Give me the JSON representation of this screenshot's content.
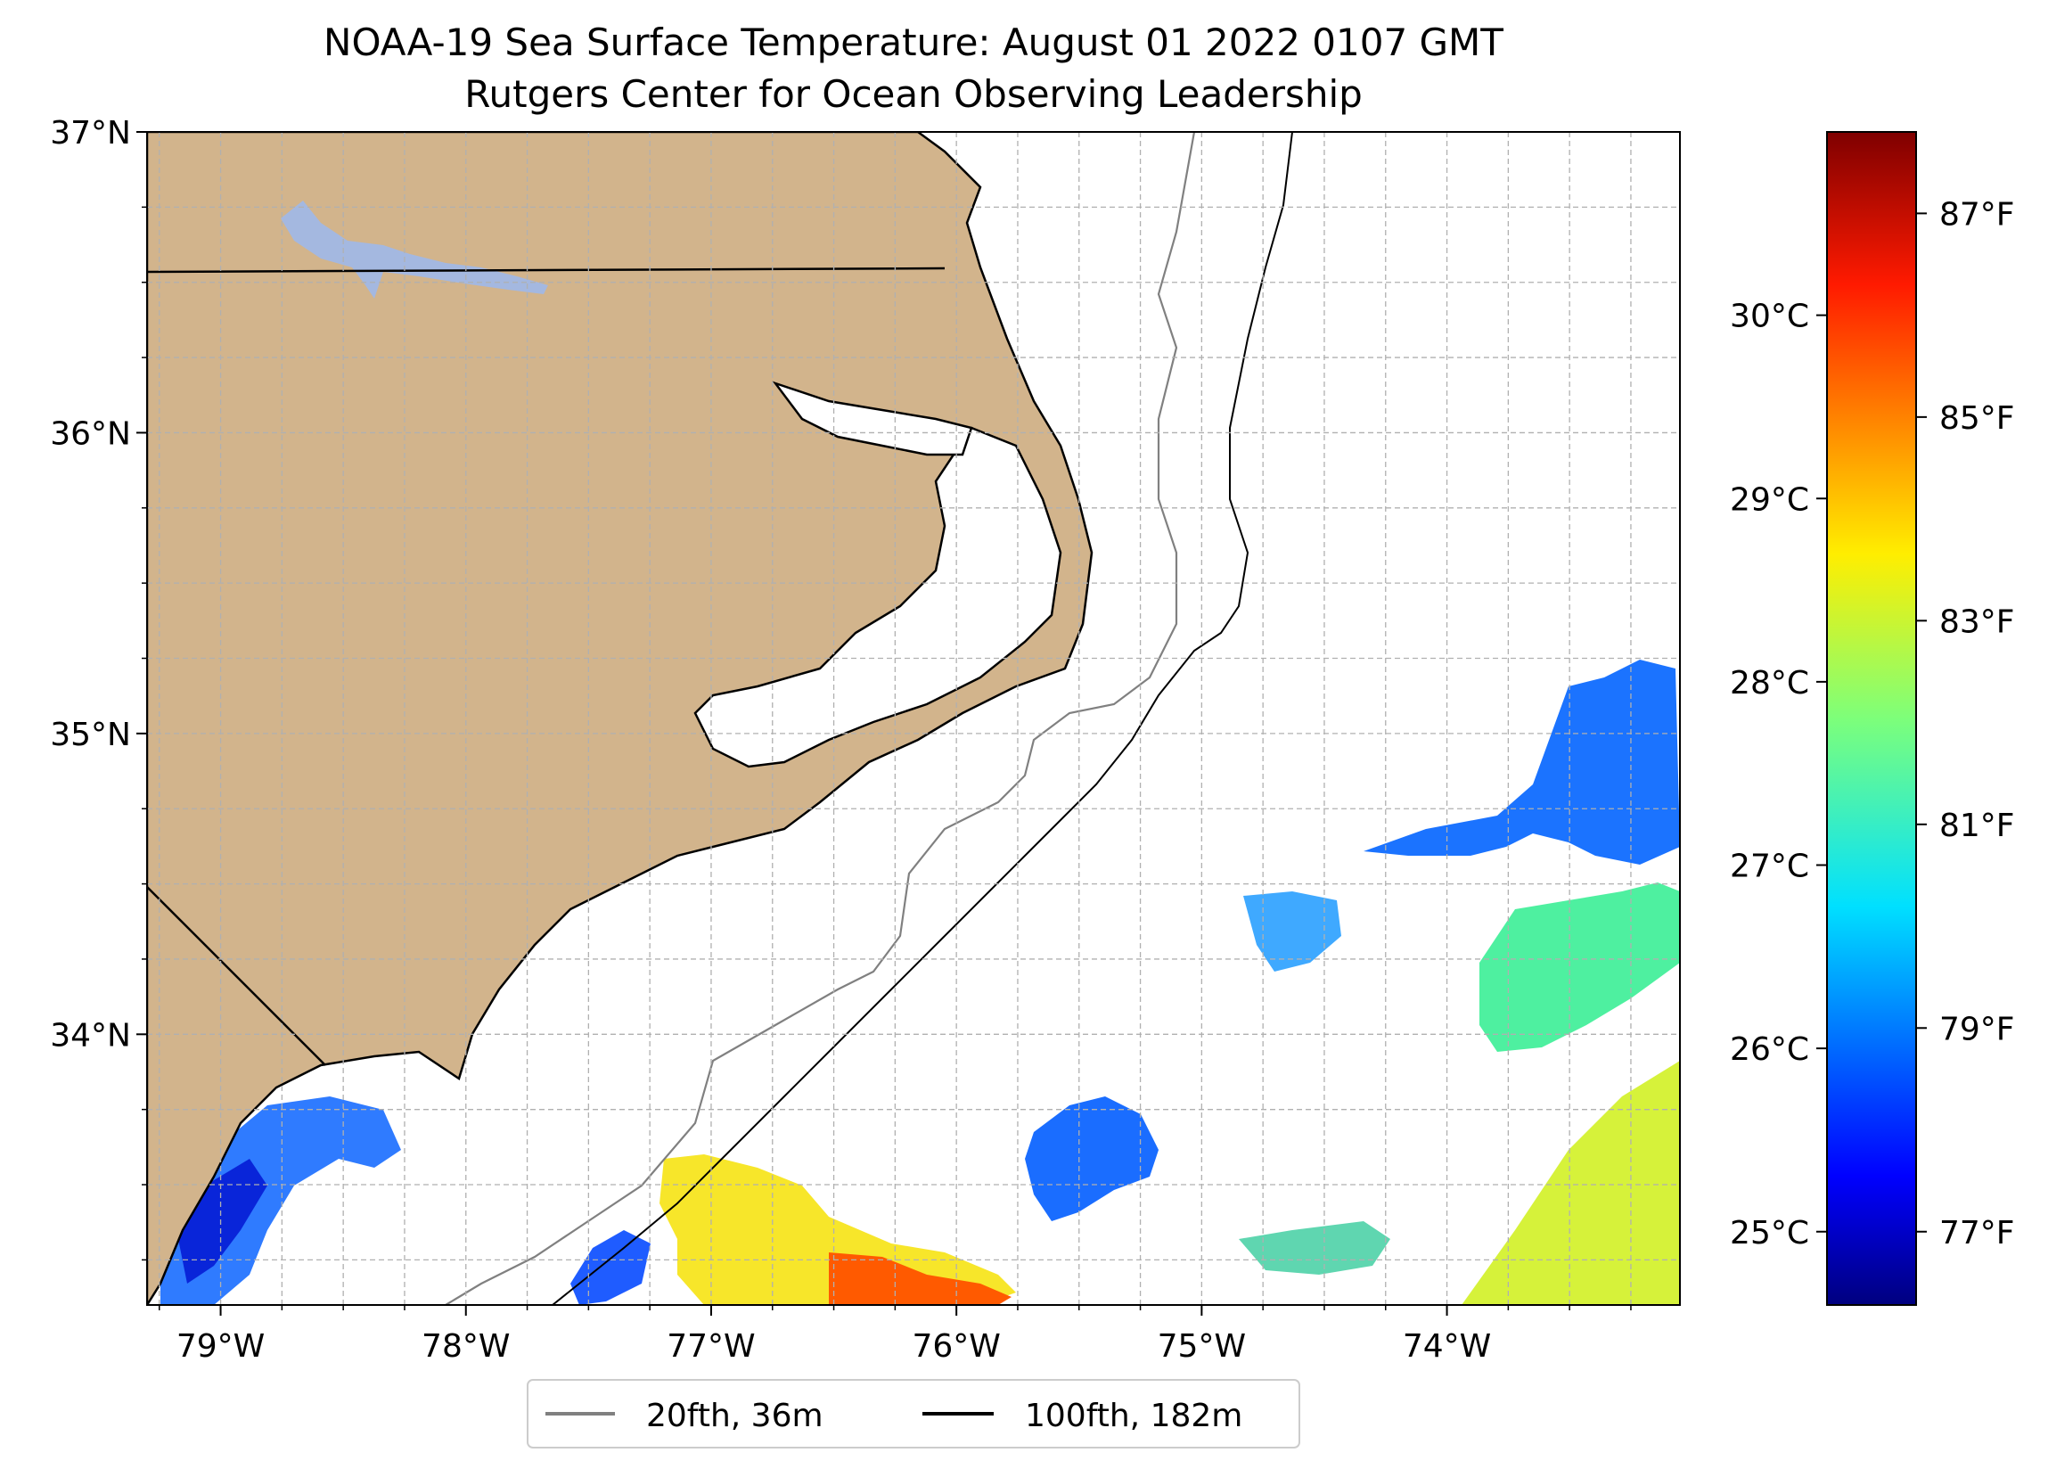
{
  "map": {
    "title": "NOAA-19 Sea Surface Temperature: August 01 2022 0107 GMT",
    "subtitle": "Rutgers Center for Ocean Observing Leadership",
    "lon_range": [
      -79.3,
      -73.05
    ],
    "lat_range": [
      33.1,
      37.0
    ],
    "lat_ticks": [
      {
        "value": 37,
        "label": "37°N"
      },
      {
        "value": 36,
        "label": "36°N"
      },
      {
        "value": 35,
        "label": "35°N"
      },
      {
        "value": 34,
        "label": "34°N"
      }
    ],
    "lon_ticks": [
      {
        "value": -79,
        "label": "79°W"
      },
      {
        "value": -78,
        "label": "78°W"
      },
      {
        "value": -77,
        "label": "77°W"
      },
      {
        "value": -76,
        "label": "76°W"
      },
      {
        "value": -75,
        "label": "75°W"
      },
      {
        "value": -74,
        "label": "74°W"
      }
    ],
    "gridlines": true,
    "colors": {
      "land": "#d2b48c",
      "lake": "#a4b8e0",
      "isobath_20": "#808080",
      "isobath_100": "#000000",
      "grid": "#b0b0b0"
    }
  },
  "colorbar": {
    "colormap": "jet",
    "celsius_ticks": [
      {
        "value": 30,
        "label": "30°C"
      },
      {
        "value": 29,
        "label": "29°C"
      },
      {
        "value": 28,
        "label": "28°C"
      },
      {
        "value": 27,
        "label": "27°C"
      },
      {
        "value": 26,
        "label": "26°C"
      },
      {
        "value": 25,
        "label": "25°C"
      }
    ],
    "fahrenheit_ticks": [
      {
        "value": 87,
        "label": "87°F"
      },
      {
        "value": 85,
        "label": "85°F"
      },
      {
        "value": 83,
        "label": "83°F"
      },
      {
        "value": 81,
        "label": "81°F"
      },
      {
        "value": 79,
        "label": "79°F"
      },
      {
        "value": 77,
        "label": "77°F"
      }
    ],
    "range_c": [
      24.6,
      31.0
    ]
  },
  "legend": {
    "placement": "bottom-center",
    "items": [
      {
        "label": "20fth, 36m",
        "color": "#808080"
      },
      {
        "label": "100fth, 182m",
        "color": "#000000"
      }
    ]
  },
  "sst_patches": [
    {
      "name": "sst-patch-south-coast-cool",
      "temp_c": 26.0,
      "lon": -78.95,
      "lat": 33.45
    },
    {
      "name": "sst-patch-south-warm",
      "temp_c": 28.3,
      "lon": -76.9,
      "lat": 33.35
    },
    {
      "name": "sst-patch-south-hot",
      "temp_c": 29.8,
      "lon": -76.2,
      "lat": 33.2
    },
    {
      "name": "sst-patch-offshore-mid",
      "temp_c": 26.5,
      "lon": -75.5,
      "lat": 33.6
    },
    {
      "name": "sst-patch-offshore-east-cool",
      "temp_c": 25.8,
      "lon": -73.5,
      "lat": 34.9
    },
    {
      "name": "sst-patch-offshore-east-green",
      "temp_c": 27.2,
      "lon": -73.6,
      "lat": 34.3
    },
    {
      "name": "sst-patch-southeast-warm",
      "temp_c": 28.2,
      "lon": -73.4,
      "lat": 33.4
    },
    {
      "name": "sst-patch-small-east",
      "temp_c": 26.8,
      "lon": -74.7,
      "lat": 34.4
    }
  ]
}
